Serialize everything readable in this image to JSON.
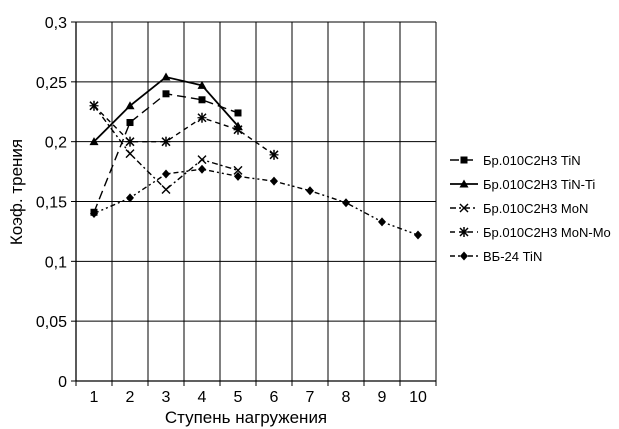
{
  "chart_data": {
    "type": "line",
    "xlabel": "Ступень нагружения",
    "ylabel": "Коэф. трения",
    "x_categories": [
      "1",
      "2",
      "3",
      "4",
      "5",
      "6",
      "7",
      "8",
      "9",
      "10"
    ],
    "y_ticks": [
      "0",
      "0,05",
      "0,1",
      "0,15",
      "0,2",
      "0,25",
      "0,3"
    ],
    "ylim": [
      0,
      0.3
    ],
    "grid": true,
    "legend_position": "right",
    "series": [
      {
        "name": "Бр.010С2Н3 TiN",
        "marker": "square",
        "dash": "long-dash",
        "x": [
          1,
          2,
          3,
          4,
          5
        ],
        "values": [
          0.141,
          0.216,
          0.24,
          0.235,
          0.224
        ]
      },
      {
        "name": "Бр.010С2Н3 TiN-Ti",
        "marker": "triangle",
        "dash": "solid",
        "x": [
          1,
          2,
          3,
          4,
          5
        ],
        "values": [
          0.2,
          0.23,
          0.254,
          0.247,
          0.213
        ]
      },
      {
        "name": "Бр.010С2Н3 MoN",
        "marker": "x",
        "dash": "dash-dot",
        "x": [
          1,
          2,
          3,
          4,
          5
        ],
        "values": [
          0.23,
          0.19,
          0.16,
          0.185,
          0.176
        ]
      },
      {
        "name": "Бр.010С2Н3 MoN-Mo",
        "marker": "star",
        "dash": "dashed",
        "x": [
          1,
          2,
          3,
          4,
          5,
          6
        ],
        "values": [
          0.23,
          0.2,
          0.2,
          0.22,
          0.21,
          0.189
        ]
      },
      {
        "name": "ВБ-24 TiN",
        "marker": "diamond",
        "dash": "dash-dot-dot",
        "x": [
          1,
          2,
          3,
          4,
          5,
          6,
          7,
          8,
          9,
          10
        ],
        "values": [
          0.14,
          0.153,
          0.173,
          0.177,
          0.171,
          0.167,
          0.159,
          0.149,
          0.133,
          0.122
        ]
      }
    ]
  }
}
